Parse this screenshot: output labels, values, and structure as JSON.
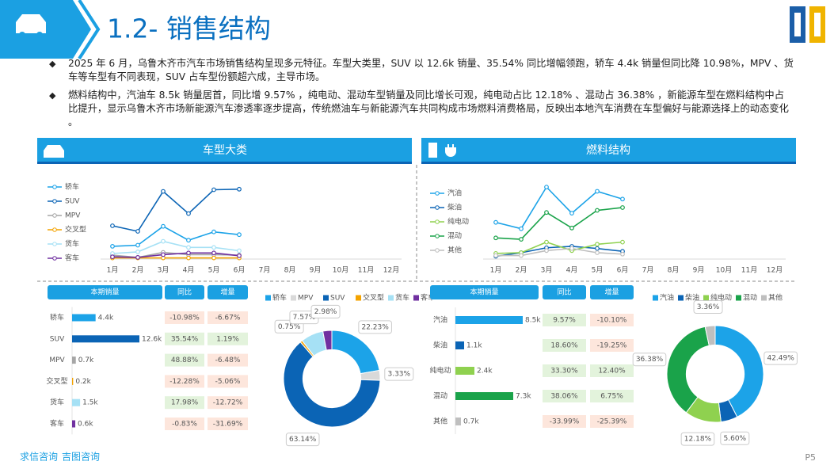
{
  "header": {
    "title": "1.2- 销售结构"
  },
  "bullets": [
    "2025 年 6 月，乌鲁木齐市汽车市场销售结构呈现多元特征。车型大类里，SUV 以 12.6k 销量、35.54% 同比增幅领跑，轿车 4.4k 销量但同比降 10.98%，MPV 、货车等车型有不同表现，SUV 占车型份额超六成，主导市场。",
    "燃料结构中，汽油车 8.5k 销量居首，同比增 9.57% ，纯电动、混动车型销量及同比增长可观，纯电动占比 12.18% 、混动占 36.38% ，新能源车型在燃料结构中占比提升，显示乌鲁木齐市场新能源汽车渗透率逐步提高，传统燃油车与新能源汽车共同构成市场燃料消费格局，反映出本地汽车消费在车型偏好与能源选择上的动态变化 。"
  ],
  "panels": [
    "车型大类",
    "燃料结构"
  ],
  "chart_data": [
    {
      "type": "line",
      "categories": [
        "1月",
        "2月",
        "3月",
        "4月",
        "5月",
        "6月",
        "7月",
        "8月",
        "9月",
        "10月",
        "11月",
        "12月"
      ],
      "ylim": [
        0,
        14
      ],
      "grid": false,
      "legend": "left",
      "series": [
        {
          "name": "轿车",
          "color": "#1ca3e8",
          "values": [
            2.3,
            2.5,
            5.9,
            3.4,
            4.9,
            4.4,
            null,
            null,
            null,
            null,
            null,
            null
          ]
        },
        {
          "name": "SUV",
          "color": "#0b64b5",
          "values": [
            6.0,
            5.0,
            12.2,
            8.2,
            12.5,
            12.6,
            null,
            null,
            null,
            null,
            null,
            null
          ]
        },
        {
          "name": "MPV",
          "color": "#a6a6a6",
          "values": [
            0.7,
            0.3,
            1.2,
            0.8,
            0.8,
            0.7,
            null,
            null,
            null,
            null,
            null,
            null
          ]
        },
        {
          "name": "交叉型",
          "color": "#f4a300",
          "values": [
            0.2,
            0.2,
            0.2,
            0.2,
            0.2,
            0.2,
            null,
            null,
            null,
            null,
            null,
            null
          ]
        },
        {
          "name": "货车",
          "color": "#a6e1f5",
          "values": [
            1.0,
            1.3,
            3.2,
            2.1,
            2.1,
            1.5,
            null,
            null,
            null,
            null,
            null,
            null
          ]
        },
        {
          "name": "客车",
          "color": "#7030a0",
          "values": [
            0.4,
            0.3,
            0.8,
            1.1,
            1.1,
            0.6,
            null,
            null,
            null,
            null,
            null,
            null
          ]
        }
      ]
    },
    {
      "type": "line",
      "categories": [
        "1月",
        "2月",
        "3月",
        "4月",
        "5月",
        "6月",
        "7月",
        "8月",
        "9月",
        "10月",
        "11月",
        "12月"
      ],
      "ylim": [
        0,
        11
      ],
      "grid": false,
      "legend": "left",
      "series": [
        {
          "name": "汽油",
          "color": "#1ca3e8",
          "values": [
            5.2,
            4.3,
            10.2,
            6.5,
            9.6,
            8.5,
            null,
            null,
            null,
            null,
            null,
            null
          ]
        },
        {
          "name": "柴油",
          "color": "#0b64b5",
          "values": [
            0.4,
            0.9,
            1.6,
            1.8,
            1.5,
            1.1,
            null,
            null,
            null,
            null,
            null,
            null
          ]
        },
        {
          "name": "纯电动",
          "color": "#8fd14f",
          "values": [
            0.8,
            0.9,
            2.4,
            1.2,
            2.1,
            2.4,
            null,
            null,
            null,
            null,
            null,
            null
          ]
        },
        {
          "name": "混动",
          "color": "#1aa34a",
          "values": [
            3.0,
            2.8,
            6.6,
            4.4,
            6.9,
            7.3,
            null,
            null,
            null,
            null,
            null,
            null
          ]
        },
        {
          "name": "其他",
          "color": "#bfbfbf",
          "values": [
            0.5,
            0.5,
            1.2,
            1.5,
            0.9,
            0.7,
            null,
            null,
            null,
            null,
            null,
            null
          ]
        }
      ]
    },
    {
      "type": "bar",
      "orientation": "horizontal",
      "value_name": "本期销量",
      "categories": [
        "轿车",
        "SUV",
        "MPV",
        "交叉型",
        "货车",
        "客车"
      ],
      "values": [
        4.4,
        12.6,
        0.7,
        0.2,
        1.5,
        0.6
      ],
      "value_labels": [
        "4.4k",
        "12.6k",
        "0.7k",
        "0.2k",
        "1.5k",
        "0.6k"
      ],
      "colors": [
        "#1ca3e8",
        "#0b64b5",
        "#a6a6a6",
        "#f4a300",
        "#a6e1f5",
        "#7030a0"
      ],
      "xlim": [
        0,
        12.6
      ],
      "columns": [
        {
          "name": "同比",
          "values": [
            "-10.98%",
            "35.54%",
            "48.88%",
            "-12.28%",
            "17.98%",
            "-0.83%"
          ]
        },
        {
          "name": "增量",
          "values": [
            "-6.67%",
            "1.19%",
            "-6.48%",
            "-5.06%",
            "-12.72%",
            "-31.69%"
          ]
        }
      ]
    },
    {
      "type": "pie",
      "hole": 0.6,
      "legend": "top",
      "categories": [
        "轿车",
        "MPV",
        "SUV",
        "交叉型",
        "货车",
        "客车"
      ],
      "values": [
        22.23,
        3.33,
        63.14,
        0.75,
        7.57,
        2.98
      ],
      "value_labels": [
        "22.23%",
        "3.33%",
        "63.14%",
        "0.75%",
        "7.57%",
        "2.98%"
      ],
      "colors": [
        "#1ca3e8",
        "#d9d9d9",
        "#0b64b5",
        "#f4a300",
        "#a6e1f5",
        "#7030a0"
      ]
    },
    {
      "type": "bar",
      "orientation": "horizontal",
      "value_name": "本期销量",
      "categories": [
        "汽油",
        "柴油",
        "纯电动",
        "混动",
        "其他"
      ],
      "values": [
        8.5,
        1.1,
        2.4,
        7.3,
        0.7
      ],
      "value_labels": [
        "8.5k",
        "1.1k",
        "2.4k",
        "7.3k",
        "0.7k"
      ],
      "colors": [
        "#1ca3e8",
        "#0b64b5",
        "#8fd14f",
        "#1aa34a",
        "#bfbfbf"
      ],
      "xlim": [
        0,
        8.5
      ],
      "columns": [
        {
          "name": "同比",
          "values": [
            "9.57%",
            "18.60%",
            "33.30%",
            "38.06%",
            "-33.99%"
          ]
        },
        {
          "name": "增量",
          "values": [
            "-10.10%",
            "-19.25%",
            "12.40%",
            "6.75%",
            "-25.39%"
          ]
        }
      ]
    },
    {
      "type": "pie",
      "hole": 0.6,
      "legend": "top",
      "categories": [
        "汽油",
        "柴油",
        "纯电动",
        "混动",
        "其他"
      ],
      "values": [
        42.49,
        5.6,
        12.18,
        36.38,
        3.36
      ],
      "value_labels": [
        "42.49%",
        "5.60%",
        "12.18%",
        "36.38%",
        "3.36%"
      ],
      "colors": [
        "#1ca3e8",
        "#0b64b5",
        "#8fd14f",
        "#1aa34a",
        "#bfbfbf"
      ]
    }
  ],
  "footer": {
    "brand": [
      "求信咨询",
      "吉图咨询"
    ],
    "page": "P5"
  }
}
